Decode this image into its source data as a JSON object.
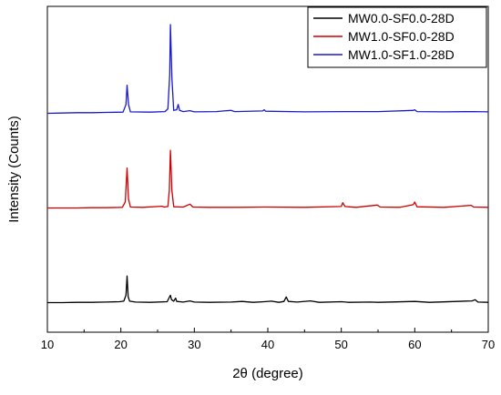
{
  "chart_data": {
    "type": "line",
    "title": "",
    "xlabel": "2θ (degree)",
    "ylabel": "Intensity (Counts)",
    "xlim": [
      10,
      70
    ],
    "x_ticks": [
      10,
      20,
      30,
      40,
      50,
      60,
      70
    ],
    "y_ticks_shown": false,
    "ylim": [
      0,
      100
    ],
    "grid": false,
    "legend_position": "top-right",
    "series": [
      {
        "name": "MW0.0-SF0.0-28D",
        "color": "#000000",
        "points": [
          [
            10,
            6.0
          ],
          [
            12,
            6.0
          ],
          [
            14,
            6.1
          ],
          [
            16,
            6.1
          ],
          [
            18,
            6.2
          ],
          [
            19.8,
            6.3
          ],
          [
            20.4,
            6.5
          ],
          [
            20.7,
            8.5
          ],
          [
            20.85,
            15.0
          ],
          [
            21.0,
            8.0
          ],
          [
            21.2,
            6.5
          ],
          [
            22,
            6.2
          ],
          [
            24,
            6.1
          ],
          [
            26.3,
            6.3
          ],
          [
            26.6,
            7.8
          ],
          [
            26.75,
            8.5
          ],
          [
            26.9,
            7.0
          ],
          [
            27.2,
            6.5
          ],
          [
            27.45,
            7.5
          ],
          [
            27.6,
            6.4
          ],
          [
            28.5,
            6.2
          ],
          [
            29.4,
            6.6
          ],
          [
            30,
            6.2
          ],
          [
            32,
            6.1
          ],
          [
            35,
            6.2
          ],
          [
            36.5,
            6.4
          ],
          [
            38,
            6.1
          ],
          [
            39.5,
            6.3
          ],
          [
            40.5,
            6.5
          ],
          [
            41.5,
            6.1
          ],
          [
            42.2,
            6.4
          ],
          [
            42.5,
            7.9
          ],
          [
            42.8,
            6.4
          ],
          [
            44,
            6.2
          ],
          [
            45.8,
            6.6
          ],
          [
            47,
            6.1
          ],
          [
            50,
            6.3
          ],
          [
            51,
            6.1
          ],
          [
            54,
            6.2
          ],
          [
            55,
            6.1
          ],
          [
            60,
            6.4
          ],
          [
            62,
            6.1
          ],
          [
            67.8,
            6.6
          ],
          [
            68.2,
            7.0
          ],
          [
            68.6,
            6.2
          ],
          [
            70,
            6.1
          ]
        ]
      },
      {
        "name": "MW1.0-SF0.0-28D",
        "color": "#cc0000",
        "points": [
          [
            10,
            38.0
          ],
          [
            12,
            38.0
          ],
          [
            14,
            38.0
          ],
          [
            16,
            38.1
          ],
          [
            18,
            38.1
          ],
          [
            20.2,
            38.2
          ],
          [
            20.6,
            40.0
          ],
          [
            20.85,
            51.5
          ],
          [
            21.05,
            41.0
          ],
          [
            21.3,
            38.3
          ],
          [
            23,
            38.2
          ],
          [
            25.6,
            38.6
          ],
          [
            25.9,
            38.3
          ],
          [
            26.4,
            38.5
          ],
          [
            26.6,
            44.0
          ],
          [
            26.75,
            57.5
          ],
          [
            26.95,
            44.0
          ],
          [
            27.2,
            38.4
          ],
          [
            28.5,
            38.3
          ],
          [
            29.4,
            39.3
          ],
          [
            29.8,
            38.3
          ],
          [
            32,
            38.2
          ],
          [
            36,
            38.2
          ],
          [
            39.5,
            38.3
          ],
          [
            45,
            38.2
          ],
          [
            50.0,
            38.5
          ],
          [
            50.2,
            39.8
          ],
          [
            50.5,
            38.5
          ],
          [
            52,
            38.2
          ],
          [
            54.9,
            39.0
          ],
          [
            55.3,
            38.3
          ],
          [
            58,
            38.2
          ],
          [
            59.8,
            39.1
          ],
          [
            60.0,
            40.0
          ],
          [
            60.3,
            38.4
          ],
          [
            64,
            38.2
          ],
          [
            67.7,
            38.9
          ],
          [
            68,
            38.3
          ],
          [
            70,
            38.2
          ]
        ]
      },
      {
        "name": "MW1.0-SF1.0-28D",
        "color": "#1a1acc",
        "points": [
          [
            10,
            70.0
          ],
          [
            12,
            70.1
          ],
          [
            14,
            70.2
          ],
          [
            16,
            70.2
          ],
          [
            18,
            70.3
          ],
          [
            20.3,
            70.4
          ],
          [
            20.7,
            73.0
          ],
          [
            20.85,
            79.5
          ],
          [
            21.05,
            73.0
          ],
          [
            21.3,
            70.5
          ],
          [
            24,
            70.4
          ],
          [
            26.0,
            70.6
          ],
          [
            26.4,
            71.5
          ],
          [
            26.65,
            83.0
          ],
          [
            26.75,
            100.0
          ],
          [
            26.95,
            82.0
          ],
          [
            27.2,
            71.0
          ],
          [
            27.6,
            71.2
          ],
          [
            27.8,
            73.0
          ],
          [
            28.0,
            71.0
          ],
          [
            28.5,
            70.6
          ],
          [
            29.4,
            70.9
          ],
          [
            30,
            70.5
          ],
          [
            33,
            70.6
          ],
          [
            34,
            70.8
          ],
          [
            35.0,
            71.0
          ],
          [
            35.5,
            70.6
          ],
          [
            39.3,
            70.8
          ],
          [
            39.5,
            71.2
          ],
          [
            39.7,
            70.7
          ],
          [
            45,
            70.5
          ],
          [
            50,
            70.6
          ],
          [
            55,
            70.6
          ],
          [
            59.8,
            71.0
          ],
          [
            60.0,
            71.2
          ],
          [
            60.3,
            70.6
          ],
          [
            64,
            70.5
          ],
          [
            68,
            70.6
          ],
          [
            70,
            70.5
          ]
        ]
      }
    ]
  }
}
